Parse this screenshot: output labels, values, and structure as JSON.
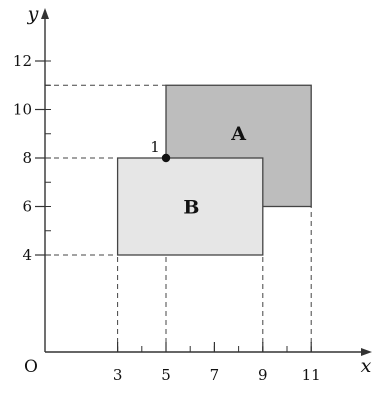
{
  "axes": {
    "x_label": "x",
    "y_label": "y",
    "origin_label": "O",
    "x_range": [
      0,
      14
    ],
    "y_range": [
      0,
      14
    ],
    "x_ticks": [
      3,
      5,
      7,
      9,
      11
    ],
    "x_tick_labels": [
      "3",
      "5",
      "7",
      "9",
      "11"
    ],
    "y_ticks": [
      4,
      6,
      8,
      10,
      12
    ],
    "y_tick_labels": [
      "4",
      "6",
      "8",
      "10",
      "12"
    ],
    "x_minor_ticks": [
      3,
      4,
      5,
      6,
      7,
      8,
      9,
      10,
      11
    ],
    "y_minor_ticks": [
      4,
      5,
      6,
      7,
      8,
      9,
      10,
      11,
      12
    ]
  },
  "rectangles": [
    {
      "label": "A",
      "x_min": 5,
      "x_max": 11,
      "y_min": 6,
      "y_max": 11,
      "fill": "#bdbdbd"
    },
    {
      "label": "B",
      "x_min": 3,
      "x_max": 9,
      "y_min": 4,
      "y_max": 8,
      "fill": "#e6e6e6"
    }
  ],
  "point": {
    "label": "1",
    "x": 5,
    "y": 8
  },
  "guides": {
    "horizontal": [
      11,
      8,
      4
    ],
    "vertical": [
      3,
      5,
      9,
      11
    ]
  },
  "colors": {
    "axis": "#333333",
    "outline": "#444444",
    "dashed": "#444444"
  }
}
